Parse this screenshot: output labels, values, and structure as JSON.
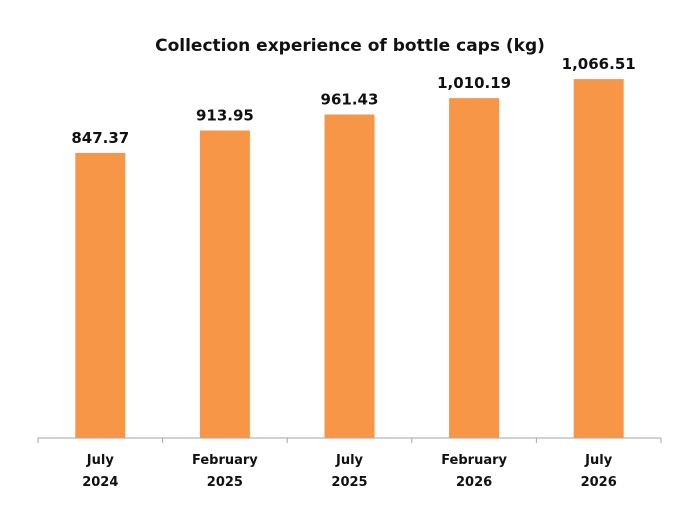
{
  "chart_data": {
    "type": "bar",
    "title": "Collection experience of bottle caps (kg)",
    "categories": [
      [
        "July",
        "2024"
      ],
      [
        "February",
        "2025"
      ],
      [
        "July",
        "2025"
      ],
      [
        "February",
        "2026"
      ],
      [
        "July",
        "2026"
      ]
    ],
    "values": [
      847.37,
      913.95,
      961.43,
      1010.19,
      1066.51
    ],
    "data_labels": [
      "847.37",
      "913.95",
      "961.43",
      "1,010.19",
      "1,066.51"
    ],
    "xlabel": "",
    "ylabel": "",
    "ylim": [
      0,
      1100
    ],
    "y_axis_visible": false,
    "grid": false,
    "legend": "none",
    "bar_color": "#F79646",
    "axis_color": "#A6A6A6"
  }
}
